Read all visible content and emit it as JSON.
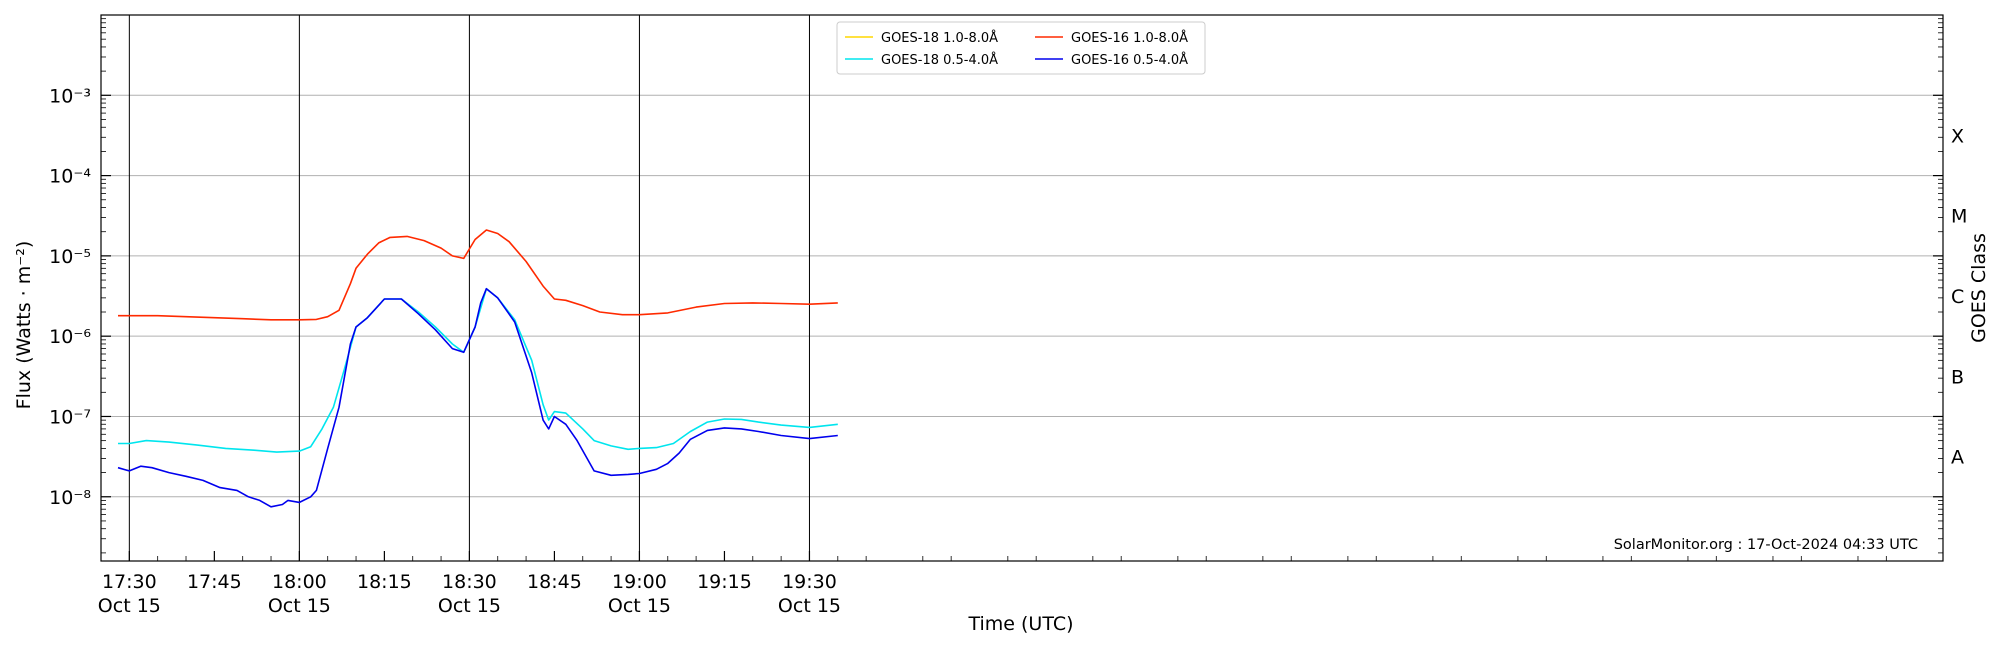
{
  "chart_data": {
    "type": "line",
    "ylabel": "Flux (Watts · m⁻²)",
    "xlabel": "Time (UTC)",
    "right_axis_label": "GOES Class",
    "x_range_minutes": [
      -5,
      320
    ],
    "y_log_range": [
      -8.8,
      -2.0
    ],
    "x_ticks": [
      {
        "t": 0,
        "label": "17:30",
        "date": "Oct 15"
      },
      {
        "t": 15,
        "label": "17:45",
        "date": ""
      },
      {
        "t": 30,
        "label": "18:00",
        "date": "Oct 15"
      },
      {
        "t": 45,
        "label": "18:15",
        "date": ""
      },
      {
        "t": 60,
        "label": "18:30",
        "date": "Oct 15"
      },
      {
        "t": 75,
        "label": "18:45",
        "date": ""
      },
      {
        "t": 90,
        "label": "19:00",
        "date": "Oct 15"
      },
      {
        "t": 105,
        "label": "19:15",
        "date": ""
      },
      {
        "t": 120,
        "label": "19:30",
        "date": "Oct 15"
      }
    ],
    "y_ticks": [
      {
        "exp": -8,
        "label": "10⁻⁸"
      },
      {
        "exp": -7,
        "label": "10⁻⁷"
      },
      {
        "exp": -6,
        "label": "10⁻⁶"
      },
      {
        "exp": -5,
        "label": "10⁻⁵"
      },
      {
        "exp": -4,
        "label": "10⁻⁴"
      },
      {
        "exp": -3,
        "label": "10⁻³"
      }
    ],
    "goes_classes": [
      {
        "label": "A",
        "exp": -7.5
      },
      {
        "label": "B",
        "exp": -6.5
      },
      {
        "label": "C",
        "exp": -5.5
      },
      {
        "label": "M",
        "exp": -4.5
      },
      {
        "label": "X",
        "exp": -3.5
      }
    ],
    "legend_position": "top-center",
    "grid": "horizontal at decades, vertical at 30-min marks",
    "annotation": "SolarMonitor.org : 17-Oct-2024 04:33 UTC",
    "series": [
      {
        "name": "GOES-18 1.0-8.0Å",
        "color": "#FFD700",
        "x": [],
        "y": []
      },
      {
        "name": "GOES-16 1.0-8.0Å",
        "color": "#FF2A00",
        "x": [
          "17:28",
          "17:30",
          "17:35",
          "17:40",
          "17:45",
          "17:50",
          "17:55",
          "18:00",
          "18:03",
          "18:05",
          "18:07",
          "18:09",
          "18:10",
          "18:12",
          "18:14",
          "18:16",
          "18:19",
          "18:22",
          "18:25",
          "18:27",
          "18:29",
          "18:31",
          "18:33",
          "18:35",
          "18:37",
          "18:40",
          "18:43",
          "18:45",
          "18:47",
          "18:50",
          "18:53",
          "18:57",
          "19:00",
          "19:05",
          "19:10",
          "19:15",
          "19:20",
          "19:25",
          "19:30",
          "19:35"
        ],
        "y": [
          1.8e-06,
          1.8e-06,
          1.8e-06,
          1.75e-06,
          1.7e-06,
          1.65e-06,
          1.6e-06,
          1.6e-06,
          1.62e-06,
          1.75e-06,
          2.1e-06,
          4.5e-06,
          7e-06,
          1.05e-05,
          1.45e-05,
          1.7e-05,
          1.75e-05,
          1.55e-05,
          1.25e-05,
          1e-05,
          9.3e-06,
          1.6e-05,
          2.1e-05,
          1.9e-05,
          1.5e-05,
          8.5e-06,
          4.2e-06,
          2.9e-06,
          2.8e-06,
          2.4e-06,
          2e-06,
          1.85e-06,
          1.85e-06,
          1.95e-06,
          2.3e-06,
          2.55e-06,
          2.6e-06,
          2.55e-06,
          2.5e-06,
          2.6e-06
        ]
      },
      {
        "name": "GOES-18 0.5-4.0Å",
        "color": "#00E5EE",
        "x": [
          "17:28",
          "17:30",
          "17:33",
          "17:37",
          "17:42",
          "17:47",
          "17:52",
          "17:56",
          "18:00",
          "18:02",
          "18:04",
          "18:06",
          "18:08",
          "18:10",
          "18:12",
          "18:15",
          "18:18",
          "18:21",
          "18:24",
          "18:27",
          "18:29",
          "18:31",
          "18:33",
          "18:35",
          "18:38",
          "18:41",
          "18:43",
          "18:44",
          "18:45",
          "18:47",
          "18:50",
          "18:52",
          "18:55",
          "18:58",
          "19:00",
          "19:03",
          "19:06",
          "19:09",
          "19:12",
          "19:15",
          "19:18",
          "19:21",
          "19:25",
          "19:30",
          "19:35"
        ],
        "y": [
          4.6e-08,
          4.6e-08,
          5e-08,
          4.8e-08,
          4.4e-08,
          4e-08,
          3.8e-08,
          3.6e-08,
          3.7e-08,
          4.2e-08,
          7e-08,
          1.3e-07,
          4e-07,
          1.3e-06,
          1.7e-06,
          2.9e-06,
          2.9e-06,
          2e-06,
          1.3e-06,
          8e-07,
          6.3e-07,
          1.3e-06,
          3.9e-06,
          3e-06,
          1.6e-06,
          5e-07,
          1.4e-07,
          9e-08,
          1.15e-07,
          1.1e-07,
          7e-08,
          5e-08,
          4.3e-08,
          3.9e-08,
          4e-08,
          4.1e-08,
          4.6e-08,
          6.5e-08,
          8.5e-08,
          9.3e-08,
          9.2e-08,
          8.5e-08,
          7.8e-08,
          7.3e-08,
          8e-08
        ]
      },
      {
        "name": "GOES-16 0.5-4.0Å",
        "color": "#0000EE",
        "x": [
          "17:28",
          "17:30",
          "17:32",
          "17:34",
          "17:37",
          "17:40",
          "17:43",
          "17:46",
          "17:49",
          "17:51",
          "17:53",
          "17:55",
          "17:57",
          "17:58",
          "18:00",
          "18:02",
          "18:03",
          "18:05",
          "18:07",
          "18:09",
          "18:10",
          "18:12",
          "18:15",
          "18:18",
          "18:21",
          "18:24",
          "18:27",
          "18:29",
          "18:31",
          "18:32",
          "18:33",
          "18:35",
          "18:38",
          "18:41",
          "18:43",
          "18:44",
          "18:45",
          "18:47",
          "18:49",
          "18:52",
          "18:55",
          "18:58",
          "19:00",
          "19:03",
          "19:05",
          "19:07",
          "19:09",
          "19:12",
          "19:15",
          "19:18",
          "19:21",
          "19:25",
          "19:30",
          "19:35"
        ],
        "y": [
          2.3e-08,
          2.1e-08,
          2.4e-08,
          2.3e-08,
          2e-08,
          1.8e-08,
          1.6e-08,
          1.3e-08,
          1.2e-08,
          1e-08,
          9e-09,
          7.5e-09,
          8e-09,
          9e-09,
          8.5e-09,
          1e-08,
          1.2e-08,
          4e-08,
          1.3e-07,
          8e-07,
          1.3e-06,
          1.7e-06,
          2.9e-06,
          2.9e-06,
          1.9e-06,
          1.2e-06,
          7e-07,
          6.3e-07,
          1.3e-06,
          2.6e-06,
          3.9e-06,
          3e-06,
          1.5e-06,
          3.5e-07,
          9e-08,
          7e-08,
          1e-07,
          8e-08,
          5e-08,
          2.1e-08,
          1.85e-08,
          1.9e-08,
          1.95e-08,
          2.2e-08,
          2.6e-08,
          3.5e-08,
          5.2e-08,
          6.7e-08,
          7.2e-08,
          7e-08,
          6.5e-08,
          5.8e-08,
          5.3e-08,
          5.8e-08
        ]
      }
    ]
  }
}
